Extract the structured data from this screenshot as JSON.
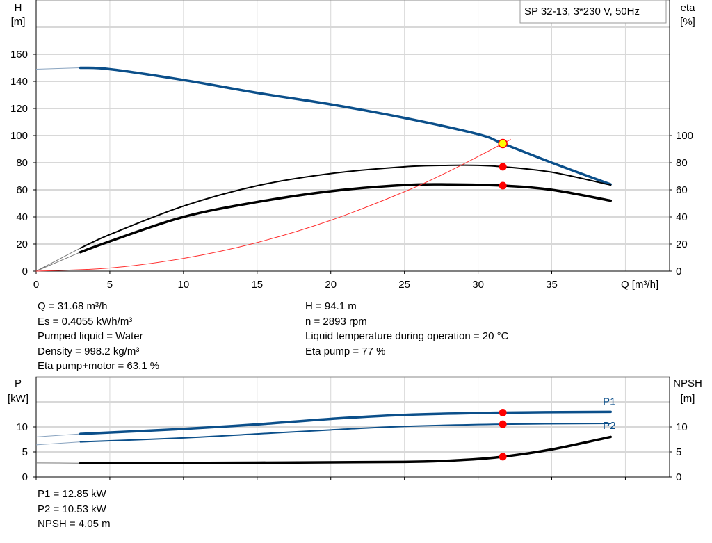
{
  "chart_data": [
    {
      "type": "line",
      "title": "SP 32-13, 3*230 V, 50Hz",
      "xlabel": "Q [m³/h]",
      "ylabel_left": [
        "H",
        "[m]"
      ],
      "ylabel_right": [
        "eta",
        "[%]"
      ],
      "xlim": [
        0,
        43
      ],
      "ylim": [
        0,
        200
      ],
      "x_ticks": [
        0,
        5,
        10,
        15,
        20,
        25,
        30,
        35
      ],
      "y_ticks_left": [
        0,
        20,
        40,
        60,
        80,
        100,
        120,
        140,
        160
      ],
      "y_ticks_right": [
        0,
        20,
        40,
        60,
        80,
        100
      ],
      "grid": true,
      "series": [
        {
          "key": "H",
          "color": "#0b4f8a",
          "width": 3.5,
          "extension": [
            [
              0,
              149
            ],
            [
              3,
              150
            ]
          ],
          "points": [
            [
              3,
              150
            ],
            [
              5,
              149
            ],
            [
              10,
              141
            ],
            [
              15,
              131.5
            ],
            [
              20,
              123
            ],
            [
              25,
              113
            ],
            [
              30,
              101
            ],
            [
              31.68,
              94.1
            ],
            [
              35,
              80
            ],
            [
              39,
              64
            ]
          ]
        },
        {
          "key": "eta_pump",
          "color": "#000000",
          "width": 2,
          "extension": [
            [
              0,
              0
            ],
            [
              3,
              17
            ]
          ],
          "points": [
            [
              3,
              17
            ],
            [
              5,
              27
            ],
            [
              10,
              48
            ],
            [
              15,
              63
            ],
            [
              20,
              72
            ],
            [
              25,
              77
            ],
            [
              28,
              78
            ],
            [
              30,
              78
            ],
            [
              31.68,
              77
            ],
            [
              35,
              73
            ],
            [
              39,
              63.5
            ]
          ]
        },
        {
          "key": "eta_pump_motor",
          "color": "#000000",
          "width": 3.5,
          "extension": [
            [
              0,
              0
            ],
            [
              3,
              14
            ]
          ],
          "points": [
            [
              3,
              14
            ],
            [
              5,
              22
            ],
            [
              10,
              40
            ],
            [
              15,
              51
            ],
            [
              20,
              59
            ],
            [
              25,
              63.5
            ],
            [
              28,
              64
            ],
            [
              31.68,
              63.1
            ],
            [
              35,
              60
            ],
            [
              39,
              52
            ]
          ]
        },
        {
          "key": "system_curve",
          "color": "#ff3030",
          "width": 1,
          "extension": [],
          "points": [
            [
              0,
              0
            ],
            [
              5,
              2.3
            ],
            [
              10,
              9.4
            ],
            [
              15,
              21.1
            ],
            [
              20,
              37.5
            ],
            [
              25,
              58.6
            ],
            [
              28,
              73.5
            ],
            [
              31.68,
              94.1
            ],
            [
              32.2,
              97.2
            ]
          ]
        }
      ],
      "operating_points": [
        {
          "x": 31.68,
          "y": 94.1,
          "color": "#ffff00"
        },
        {
          "x": 31.68,
          "y": 77,
          "color": "#ff0000"
        },
        {
          "x": 31.68,
          "y": 63.1,
          "color": "#ff0000"
        }
      ]
    },
    {
      "type": "line",
      "xlabel": "",
      "ylabel_left": [
        "P",
        "[kW]"
      ],
      "ylabel_right": [
        "NPSH",
        "[m]"
      ],
      "xlim": [
        0,
        43
      ],
      "ylim": [
        0,
        20
      ],
      "x_ticks": [
        0,
        5,
        10,
        15,
        20,
        25,
        30,
        35,
        40
      ],
      "y_ticks_left": [
        0,
        5,
        10
      ],
      "y_ticks_right": [
        0,
        5,
        10
      ],
      "grid": true,
      "series": [
        {
          "key": "P1",
          "name": "P1",
          "color": "#0b4f8a",
          "width": 3.5,
          "extension": [
            [
              0,
              8
            ],
            [
              3,
              8.6
            ]
          ],
          "points": [
            [
              3,
              8.6
            ],
            [
              10,
              9.6
            ],
            [
              15,
              10.5
            ],
            [
              20,
              11.6
            ],
            [
              25,
              12.4
            ],
            [
              31.68,
              12.85
            ],
            [
              39,
              13.0
            ]
          ]
        },
        {
          "key": "P2",
          "name": "P2",
          "color": "#0b4f8a",
          "width": 2,
          "extension": [
            [
              0,
              6.4
            ],
            [
              3,
              7.0
            ]
          ],
          "points": [
            [
              3,
              7.0
            ],
            [
              10,
              7.8
            ],
            [
              15,
              8.6
            ],
            [
              20,
              9.4
            ],
            [
              25,
              10.1
            ],
            [
              31.68,
              10.53
            ],
            [
              39,
              10.7
            ]
          ]
        },
        {
          "key": "NPSH",
          "color": "#000000",
          "width": 3.5,
          "extension": [
            [
              0,
              2.8
            ],
            [
              3,
              2.75
            ]
          ],
          "points": [
            [
              3,
              2.75
            ],
            [
              15,
              2.85
            ],
            [
              25,
              3.0
            ],
            [
              29,
              3.4
            ],
            [
              31.68,
              4.05
            ],
            [
              35,
              5.5
            ],
            [
              39,
              8.0
            ]
          ]
        }
      ],
      "operating_points": [
        {
          "x": 31.68,
          "y": 12.85,
          "color": "#ff0000"
        },
        {
          "x": 31.68,
          "y": 10.53,
          "color": "#ff0000"
        },
        {
          "x": 31.68,
          "y": 4.05,
          "color": "#ff0000"
        }
      ]
    }
  ],
  "results_top": {
    "left": [
      "Q = 31.68 m³/h",
      "Es = 0.4055 kWh/m³",
      "Pumped liquid = Water",
      "Density = 998.2 kg/m³",
      "Eta pump+motor = 63.1 %"
    ],
    "right": [
      "H = 94.1 m",
      "n = 2893 rpm",
      "Liquid temperature during operation = 20 °C",
      "Eta pump = 77 %"
    ]
  },
  "results_bottom": [
    "P1 = 12.85 kW",
    "P2 = 10.53 kW",
    "NPSH = 4.05 m"
  ]
}
